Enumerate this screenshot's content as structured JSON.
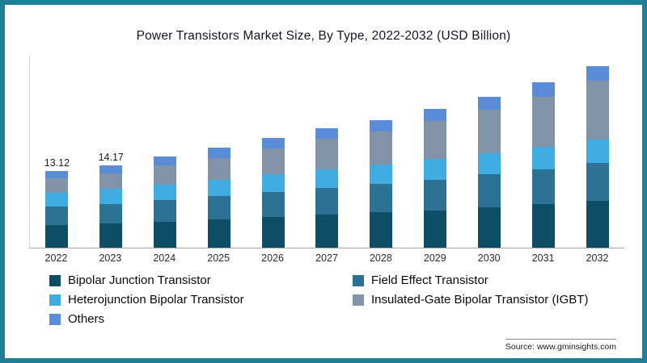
{
  "chart_data": {
    "type": "bar",
    "stacked": true,
    "title": "Power Transistors Market Size, By Type, 2022-2032 (USD Billion)",
    "categories": [
      "2022",
      "2023",
      "2024",
      "2025",
      "2026",
      "2027",
      "2028",
      "2029",
      "2030",
      "2031",
      "2032"
    ],
    "series": [
      {
        "name": "Bipolar Junction Transistor",
        "color": "#0d4d66",
        "values": [
          3.8,
          4.1,
          4.4,
          4.8,
          5.2,
          5.6,
          6.0,
          6.4,
          6.9,
          7.4,
          8.0
        ]
      },
      {
        "name": "Field Effect Transistor",
        "color": "#2d7295",
        "values": [
          3.2,
          3.4,
          3.7,
          4.0,
          4.3,
          4.6,
          4.9,
          5.2,
          5.6,
          6.0,
          6.4
        ]
      },
      {
        "name": "Heterojunction Bipolar Transistor",
        "color": "#3fade1",
        "values": [
          2.4,
          2.5,
          2.7,
          2.8,
          3.0,
          3.2,
          3.3,
          3.5,
          3.6,
          3.8,
          4.0
        ]
      },
      {
        "name": "Insulated-Gate Bipolar Transistor (IGBT)",
        "color": "#8093a7",
        "values": [
          2.4,
          2.7,
          3.2,
          3.7,
          4.4,
          5.1,
          5.6,
          6.5,
          7.4,
          8.6,
          10.1
        ]
      },
      {
        "name": "Others",
        "color": "#5b8cd8",
        "values": [
          1.3,
          1.4,
          1.6,
          1.7,
          1.8,
          1.9,
          2.0,
          2.1,
          2.2,
          2.4,
          2.5
        ]
      }
    ],
    "totals": [
      13.12,
      14.17,
      15.6,
      17.0,
      18.7,
      20.4,
      21.8,
      23.7,
      25.7,
      28.2,
      31.0
    ],
    "bar_labels": [
      "13.12",
      "14.17",
      "",
      "",
      "",
      "",
      "",
      "",
      "",
      "",
      ""
    ],
    "ylim": [
      0,
      33
    ],
    "grid": false,
    "legend_position": "bottom"
  },
  "source": "Source: www.gminsights.com",
  "frame_color": "#1f7f96"
}
